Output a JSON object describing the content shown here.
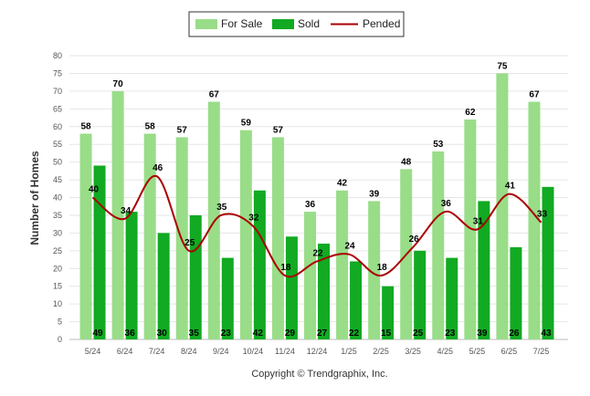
{
  "chart_data": {
    "type": "bar",
    "categories": [
      "5/24",
      "6/24",
      "7/24",
      "8/24",
      "9/24",
      "10/24",
      "11/24",
      "12/24",
      "1/25",
      "2/25",
      "3/25",
      "4/25",
      "5/25",
      "6/25",
      "7/25"
    ],
    "series": [
      {
        "name": "For Sale",
        "kind": "bar",
        "color": "#99dd88",
        "values": [
          58,
          70,
          58,
          57,
          67,
          59,
          57,
          36,
          42,
          39,
          48,
          53,
          62,
          75,
          67
        ]
      },
      {
        "name": "Sold",
        "kind": "bar",
        "color": "#11aa22",
        "values": [
          49,
          36,
          30,
          35,
          23,
          42,
          29,
          27,
          22,
          15,
          25,
          23,
          39,
          26,
          43
        ]
      },
      {
        "name": "Pended",
        "kind": "line",
        "color": "#aa0000",
        "values": [
          40,
          34,
          46,
          25,
          35,
          32,
          18,
          22,
          24,
          18,
          26,
          36,
          31,
          41,
          33
        ]
      }
    ],
    "ylabel": "Number of Homes",
    "xlabel": "",
    "ylim": [
      0,
      80
    ],
    "yticks": [
      0,
      5,
      10,
      15,
      20,
      25,
      30,
      35,
      40,
      45,
      50,
      55,
      60,
      65,
      70,
      75,
      80
    ],
    "grid": true,
    "legend_position": "top-center"
  },
  "footer": {
    "copyright": "Copyright © Trendgraphix, Inc."
  }
}
